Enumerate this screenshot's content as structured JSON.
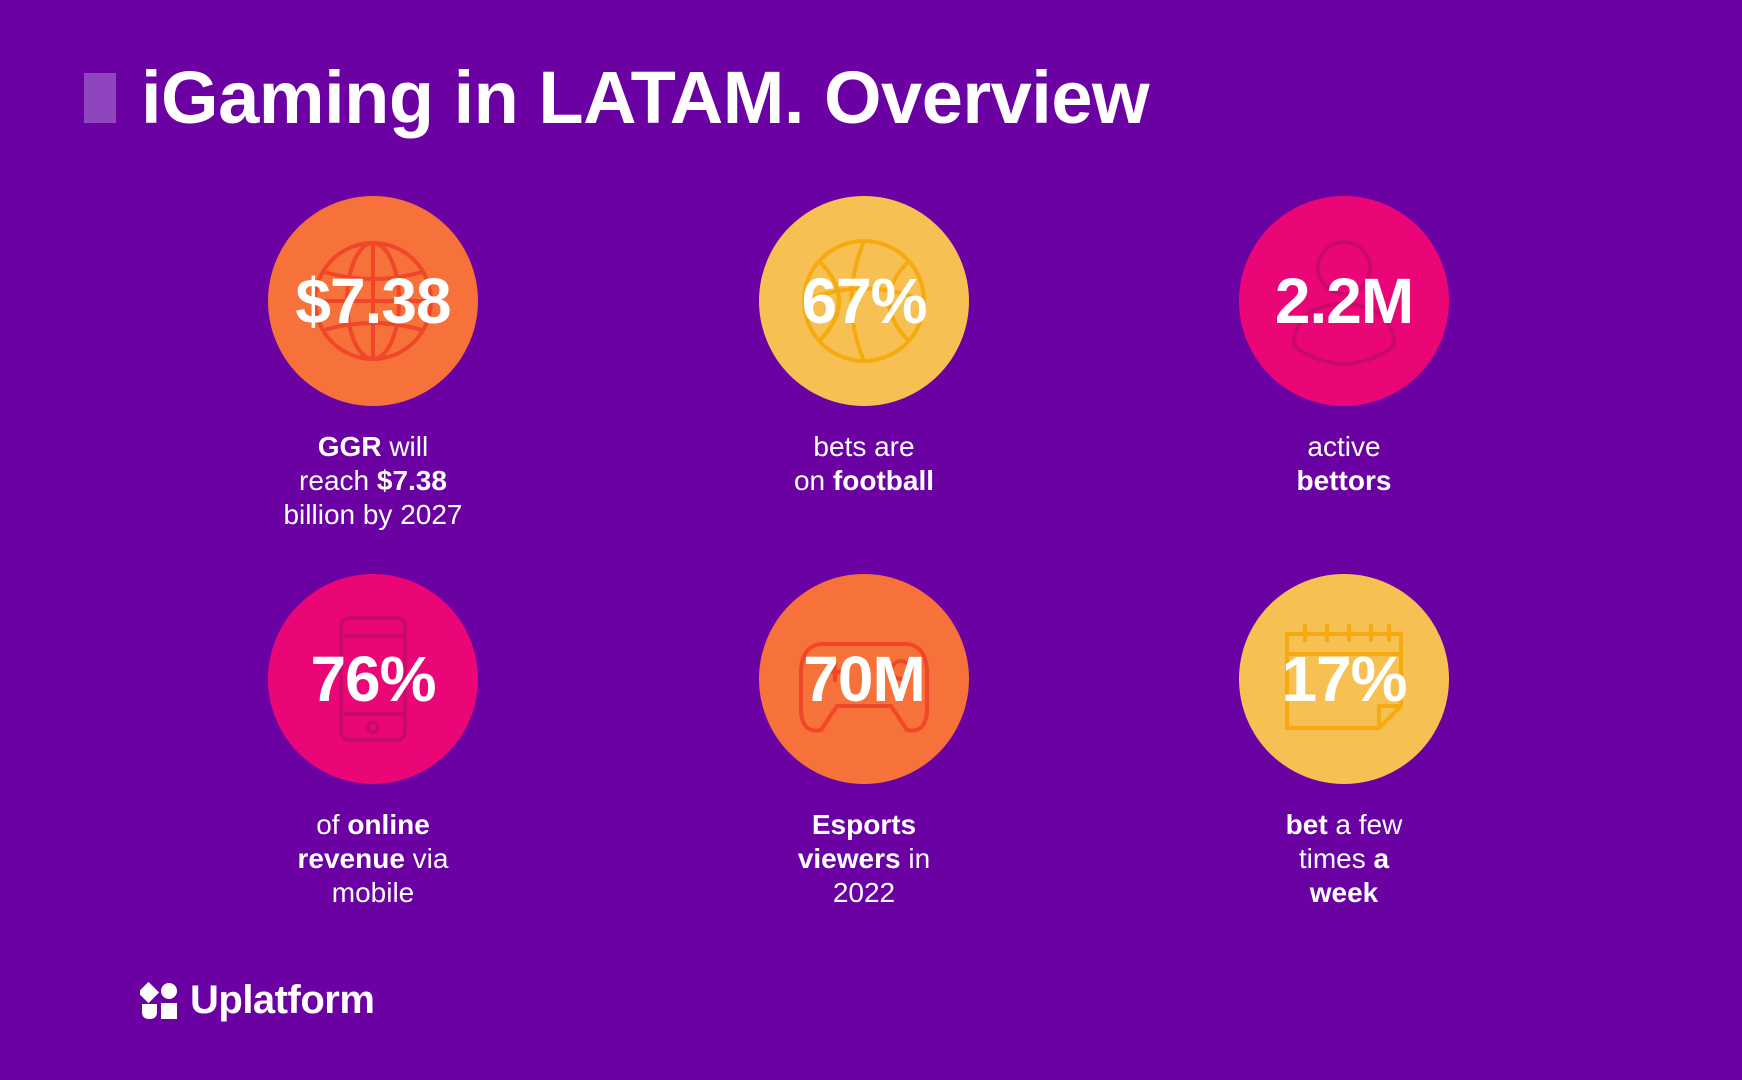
{
  "title": "iGaming in LATAM. Overview",
  "colors": {
    "background": "#6b01a3",
    "orange": "#f7723a",
    "yellow": "#f6c152",
    "pink": "#ea0677",
    "accent_bar": "#8e45bd"
  },
  "stats": [
    {
      "value": "$7.38",
      "icon": "globe-icon",
      "color": "orange",
      "caption": [
        {
          "t": "GGR",
          "b": true
        },
        {
          "t": " will"
        },
        {
          "br": true
        },
        {
          "t": "reach "
        },
        {
          "t": "$7.38",
          "b": true
        },
        {
          "br": true
        },
        {
          "t": "billion by 2027"
        }
      ]
    },
    {
      "value": "67%",
      "icon": "ball-icon",
      "color": "yellow",
      "caption": [
        {
          "t": "bets are"
        },
        {
          "br": true
        },
        {
          "t": "on "
        },
        {
          "t": "football",
          "b": true
        }
      ]
    },
    {
      "value": "2.2M",
      "icon": "user-icon",
      "color": "pink",
      "caption": [
        {
          "t": "active"
        },
        {
          "br": true
        },
        {
          "t": "bettors",
          "b": true
        }
      ]
    },
    {
      "value": "76%",
      "icon": "mobile-phone-icon",
      "color": "pink",
      "caption": [
        {
          "t": "of "
        },
        {
          "t": "online",
          "b": true
        },
        {
          "br": true
        },
        {
          "t": "revenue",
          "b": true
        },
        {
          "t": " via"
        },
        {
          "br": true
        },
        {
          "t": "mobile"
        }
      ]
    },
    {
      "value": "70M",
      "icon": "gamepad-icon",
      "color": "orange",
      "caption": [
        {
          "t": "Esports",
          "b": true
        },
        {
          "br": true
        },
        {
          "t": "viewers",
          "b": true
        },
        {
          "t": " in"
        },
        {
          "br": true
        },
        {
          "t": "2022"
        }
      ]
    },
    {
      "value": "17%",
      "icon": "calendar-icon",
      "color": "yellow",
      "caption": [
        {
          "t": "bet",
          "b": true
        },
        {
          "t": " a few"
        },
        {
          "br": true
        },
        {
          "t": "times "
        },
        {
          "t": "a",
          "b": true
        },
        {
          "br": true
        },
        {
          "t": "week",
          "b": true
        }
      ]
    }
  ],
  "logo": {
    "text": "Uplatform",
    "icon": "uplatform-logo-icon"
  }
}
